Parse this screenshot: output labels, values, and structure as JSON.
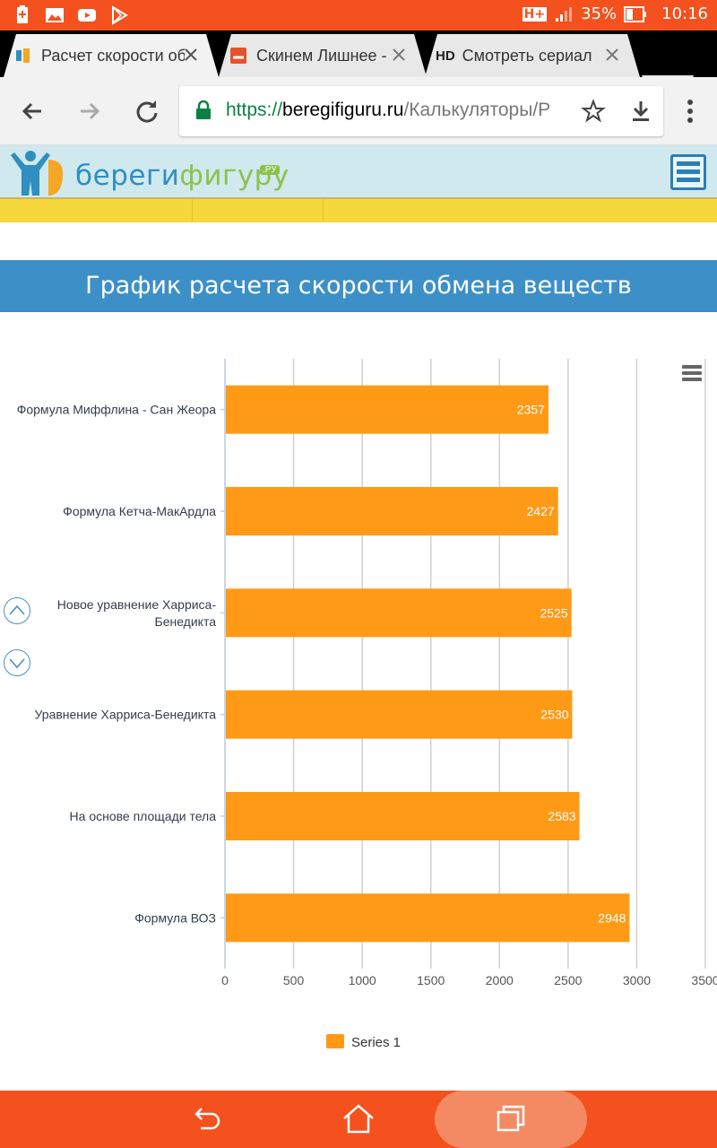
{
  "status_bar": {
    "network": "H+",
    "battery": "35%",
    "time": "10:16"
  },
  "tabs": [
    {
      "title": "Расчет скорости обмена",
      "active": true
    },
    {
      "title": "Скинем Лишнее - ",
      "active": false
    },
    {
      "title": "Смотреть сериал",
      "favicon_text": "HD",
      "active": false
    }
  ],
  "omnibox": {
    "scheme": "https://",
    "host": "beregifiguru.ru",
    "path": "/Калькуляторы/Р"
  },
  "site": {
    "logo_part1": "береги",
    "logo_part2": "фигуру",
    "logo_suffix": ".РУ",
    "section_title": "График расчета скорости обмена веществ"
  },
  "colors": {
    "accent": "#f4511e",
    "bar": "#ff9a17",
    "header_blue": "#3d8fc8",
    "yellow": "#f6d83c"
  },
  "chart_data": {
    "type": "bar",
    "orientation": "horizontal",
    "categories": [
      "Формула Миффлина - Сан Жеора",
      "Формула Кетча-МакАрдла",
      "Новое уравнение Харриса-Бенедикта",
      "Уравнение Харриса-Бенедикта",
      "На основе площади тела",
      "Формула ВОЗ"
    ],
    "category_lines": [
      [
        "Формула Миффлина - Сан Жеора"
      ],
      [
        "Формула Кетча-МакАрдла"
      ],
      [
        "Новое уравнение Харриса-",
        "Бенедикта"
      ],
      [
        "Уравнение Харриса-Бенедикта"
      ],
      [
        "На основе площади тела"
      ],
      [
        "Формула ВОЗ"
      ]
    ],
    "series": [
      {
        "name": "Series 1",
        "values": [
          2357,
          2427,
          2525,
          2530,
          2583,
          2948
        ]
      }
    ],
    "x_ticks": [
      0,
      500,
      1000,
      1500,
      2000,
      2500,
      3000,
      3500
    ],
    "xlim": [
      0,
      3500
    ],
    "grid": true,
    "data_labels": true,
    "legend": "bottom-center"
  }
}
